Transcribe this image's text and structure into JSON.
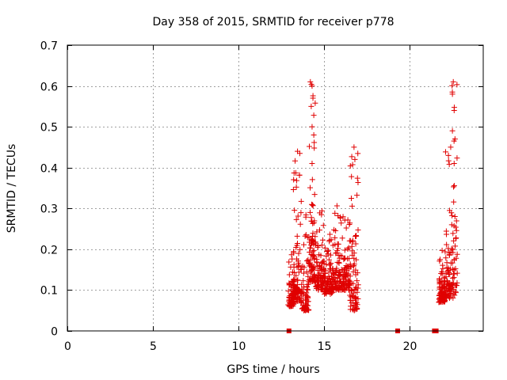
{
  "chart_data": {
    "type": "scatter",
    "title": "Day 358 of 2015, SRMTID for receiver p778",
    "xlabel": "GPS time / hours",
    "ylabel": "SRMTID / TECUs",
    "xlim": [
      0,
      24.3
    ],
    "ylim": [
      0,
      0.7
    ],
    "x_ticks": [
      0,
      5,
      10,
      15,
      20
    ],
    "y_ticks": [
      0,
      0.1,
      0.2,
      0.3,
      0.4,
      0.5,
      0.6,
      0.7
    ],
    "x_tick_labels": [
      "0",
      "5",
      "10",
      "15",
      "20"
    ],
    "y_tick_labels": [
      "0",
      "0.1",
      "0.2",
      "0.3",
      "0.4",
      "0.5",
      "0.6",
      "0.7"
    ],
    "grid": true,
    "marker": "plus",
    "color": "#e00000",
    "zero_markers": [
      [
        12.95,
        0
      ],
      [
        19.3,
        0
      ],
      [
        21.45,
        0
      ],
      [
        21.55,
        0
      ]
    ],
    "clusters": [
      {
        "x_range": [
          12.9,
          13.3
        ],
        "y_range": [
          0.06,
          0.22
        ],
        "count": 70
      },
      {
        "x_range": [
          13.2,
          13.6
        ],
        "y_range": [
          0.07,
          0.44
        ],
        "count": 80
      },
      {
        "x_range": [
          13.6,
          14.1
        ],
        "y_range": [
          0.05,
          0.32
        ],
        "count": 80
      },
      {
        "x_range": [
          14.1,
          14.5
        ],
        "y_range": [
          0.12,
          0.61
        ],
        "count": 90
      },
      {
        "x_range": [
          14.5,
          15.0
        ],
        "y_range": [
          0.1,
          0.3
        ],
        "count": 80
      },
      {
        "x_range": [
          15.0,
          15.5
        ],
        "y_range": [
          0.09,
          0.25
        ],
        "count": 80
      },
      {
        "x_range": [
          15.5,
          16.0
        ],
        "y_range": [
          0.1,
          0.34
        ],
        "count": 80
      },
      {
        "x_range": [
          16.0,
          16.5
        ],
        "y_range": [
          0.1,
          0.28
        ],
        "count": 80
      },
      {
        "x_range": [
          16.5,
          17.0
        ],
        "y_range": [
          0.05,
          0.45
        ],
        "count": 80
      },
      {
        "x_range": [
          21.7,
          22.1
        ],
        "y_range": [
          0.07,
          0.2
        ],
        "count": 90
      },
      {
        "x_range": [
          22.1,
          22.4
        ],
        "y_range": [
          0.08,
          0.45
        ],
        "count": 60
      },
      {
        "x_range": [
          22.4,
          22.8
        ],
        "y_range": [
          0.08,
          0.61
        ],
        "count": 60
      }
    ],
    "highlight_points": [
      [
        14.2,
        0.61
      ],
      [
        14.3,
        0.6
      ],
      [
        14.35,
        0.57
      ],
      [
        14.25,
        0.55
      ],
      [
        14.3,
        0.5
      ],
      [
        14.4,
        0.48
      ],
      [
        13.45,
        0.44
      ],
      [
        14.3,
        0.41
      ],
      [
        16.75,
        0.45
      ],
      [
        16.8,
        0.42
      ],
      [
        22.55,
        0.61
      ],
      [
        22.5,
        0.58
      ],
      [
        22.6,
        0.54
      ],
      [
        22.5,
        0.49
      ],
      [
        22.65,
        0.47
      ],
      [
        22.4,
        0.45
      ],
      [
        22.6,
        0.41
      ]
    ]
  }
}
